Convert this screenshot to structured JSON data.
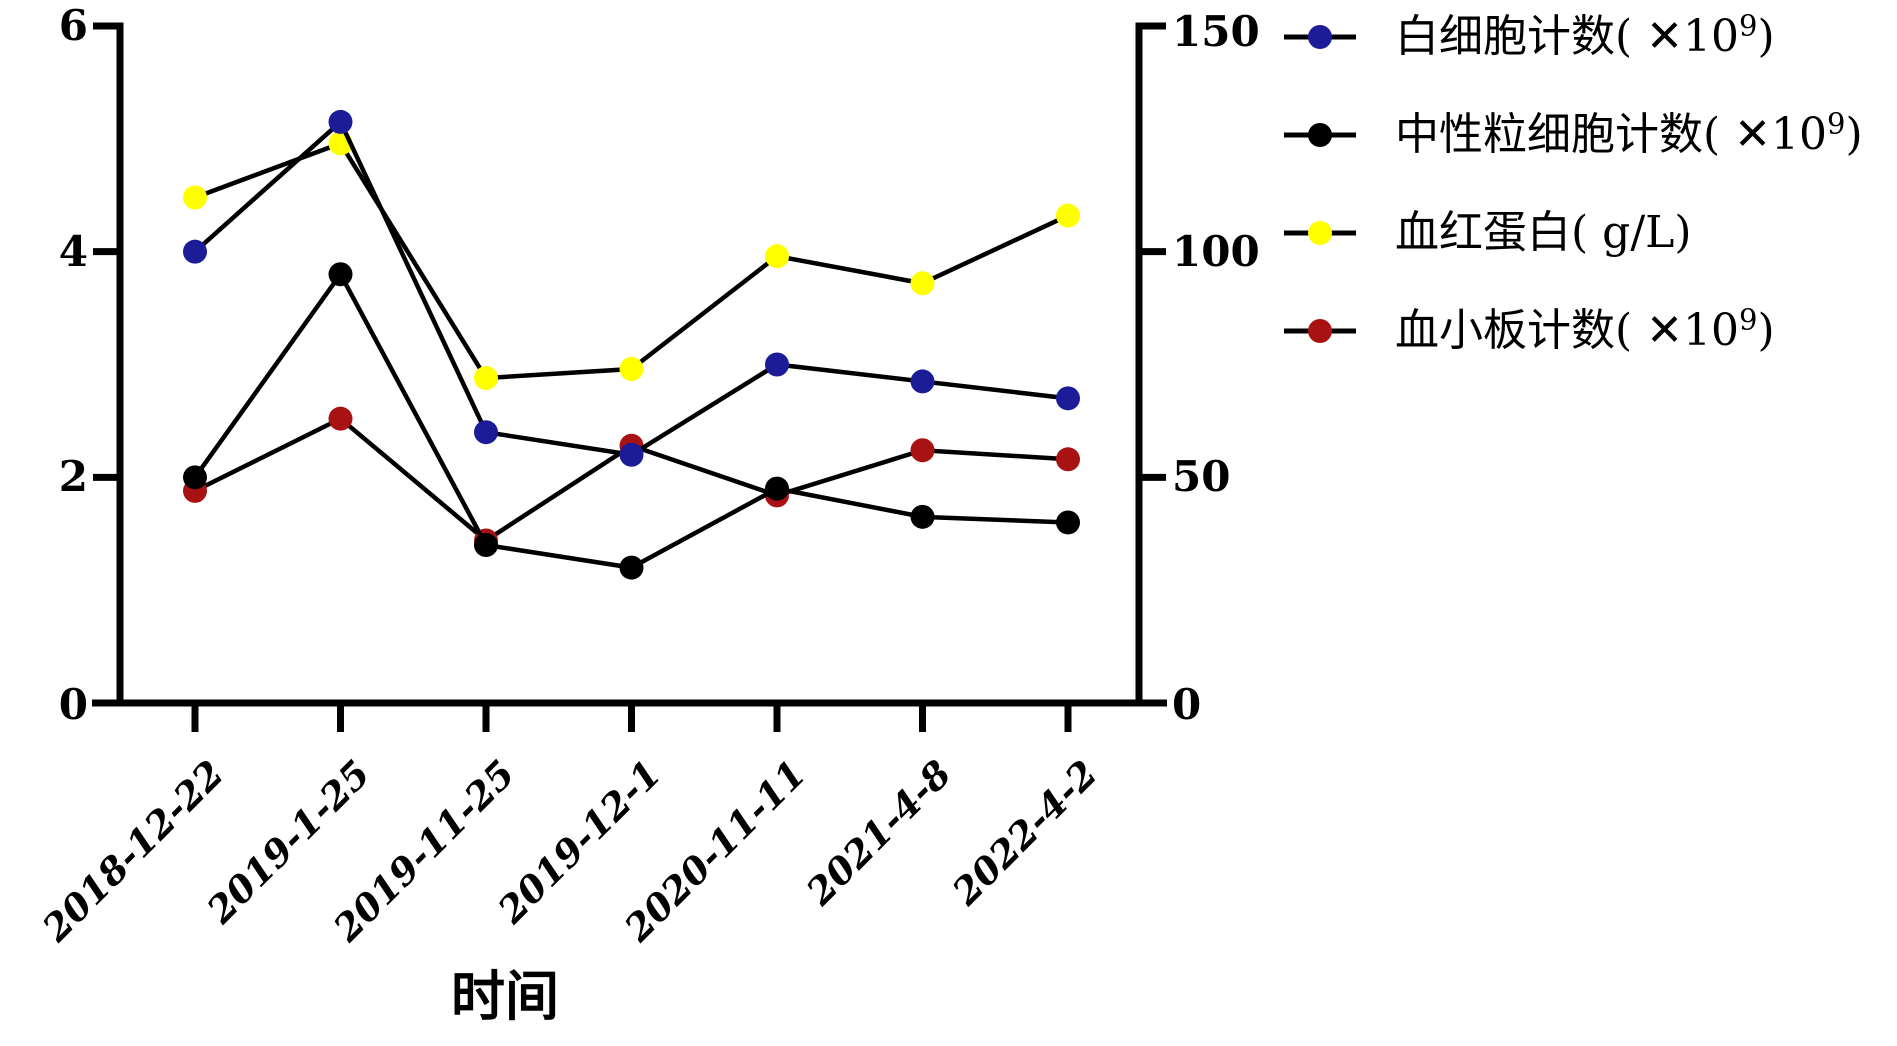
{
  "chart_data": {
    "type": "line",
    "title": "",
    "xlabel": "时间",
    "categories": [
      "2018-12-22",
      "2019-1-25",
      "2019-11-25",
      "2019-12-1",
      "2020-11-11",
      "2021-4-8",
      "2022-4-2"
    ],
    "left_axis": {
      "min": 0,
      "max": 6,
      "tick_labels": [
        "6",
        "4",
        "2",
        "0"
      ]
    },
    "right_axis": {
      "min": 0,
      "max": 150,
      "tick_labels": [
        "150",
        "100",
        "50",
        "0"
      ]
    },
    "grid": false,
    "legend_position": "top-right",
    "connector_line_color": "#000000",
    "series": [
      {
        "name": "白细胞计数(✕10⁹)",
        "name_text": "白细胞计数( ✕10",
        "name_sup": "9",
        "name_close": ")",
        "axis": "left",
        "color": "#1C1C99",
        "values": [
          4.0,
          5.15,
          2.4,
          2.2,
          3.0,
          2.85,
          2.7
        ]
      },
      {
        "name": "中性粒细胞计数(✕10⁹)",
        "name_text": "中性粒细胞计数( ✕10",
        "name_sup": "9",
        "name_close": ")",
        "axis": "left",
        "color": "#000000",
        "values": [
          2.0,
          3.8,
          1.4,
          1.2,
          1.9,
          1.65,
          1.6
        ]
      },
      {
        "name": "血红蛋白( g/L)",
        "name_text": "血红蛋白( g/L)",
        "name_sup": "",
        "name_close": "",
        "axis": "right",
        "color": "#FFFF00",
        "values": [
          112,
          124,
          72,
          74,
          99,
          93,
          108
        ]
      },
      {
        "name": "血小板计数(✕10⁹)",
        "name_text": "血小板计数( ✕10",
        "name_sup": "9",
        "name_close": ")",
        "axis": "right",
        "color": "#A81212",
        "values": [
          47,
          63,
          36,
          57,
          46,
          56,
          54
        ]
      }
    ]
  }
}
